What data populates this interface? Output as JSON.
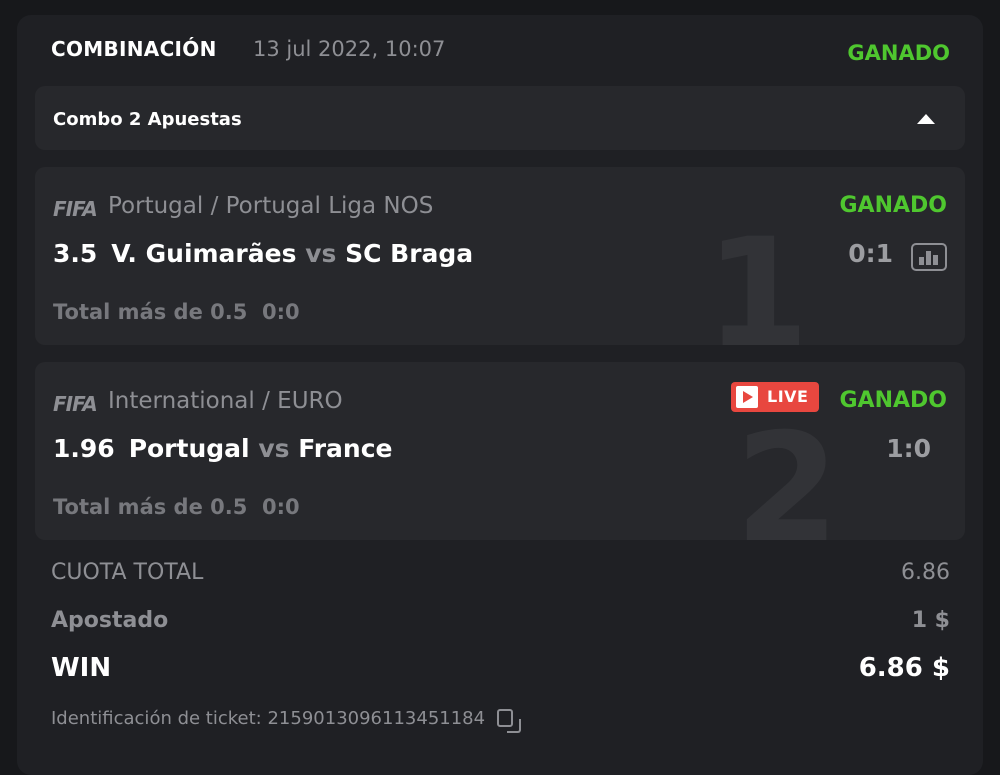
{
  "header": {
    "title": "COMBINACIÓN",
    "date": "13 jul 2022, 10:07",
    "status": "GANADO"
  },
  "combo": {
    "label": "Combo 2 Apuestas",
    "icon": "caret-up-icon"
  },
  "events": [
    {
      "index": "1",
      "sport_logo": "FIFA",
      "league": "Portugal / Portugal Liga NOS",
      "status": "GANADO",
      "odd": "3.5",
      "home": "V. Guimarães",
      "vs": "vs",
      "away": "SC Braga",
      "score": "0:1",
      "market": "Total más de 0.5",
      "market_score": "0:0",
      "live": false
    },
    {
      "index": "2",
      "sport_logo": "FIFA",
      "league": "International / EURO",
      "status": "GANADO",
      "odd": "1.96",
      "home": "Portugal",
      "vs": "vs",
      "away": "France",
      "score": "1:0",
      "market": "Total más de 0.5",
      "market_score": "0:0",
      "live": true,
      "live_label": "LIVE"
    }
  ],
  "summary": {
    "total_odds_label": "CUOTA TOTAL",
    "total_odds": "6.86",
    "staked_label": "Apostado",
    "staked": "1 $",
    "win_label": "WIN",
    "win": "6.86 $"
  },
  "ticket": {
    "label": "Identificación de ticket:",
    "id": "2159013096113451184"
  },
  "colors": {
    "won": "#4fc72f",
    "live": "#e8473f",
    "card": "#1f2024",
    "inner": "#27282c"
  }
}
